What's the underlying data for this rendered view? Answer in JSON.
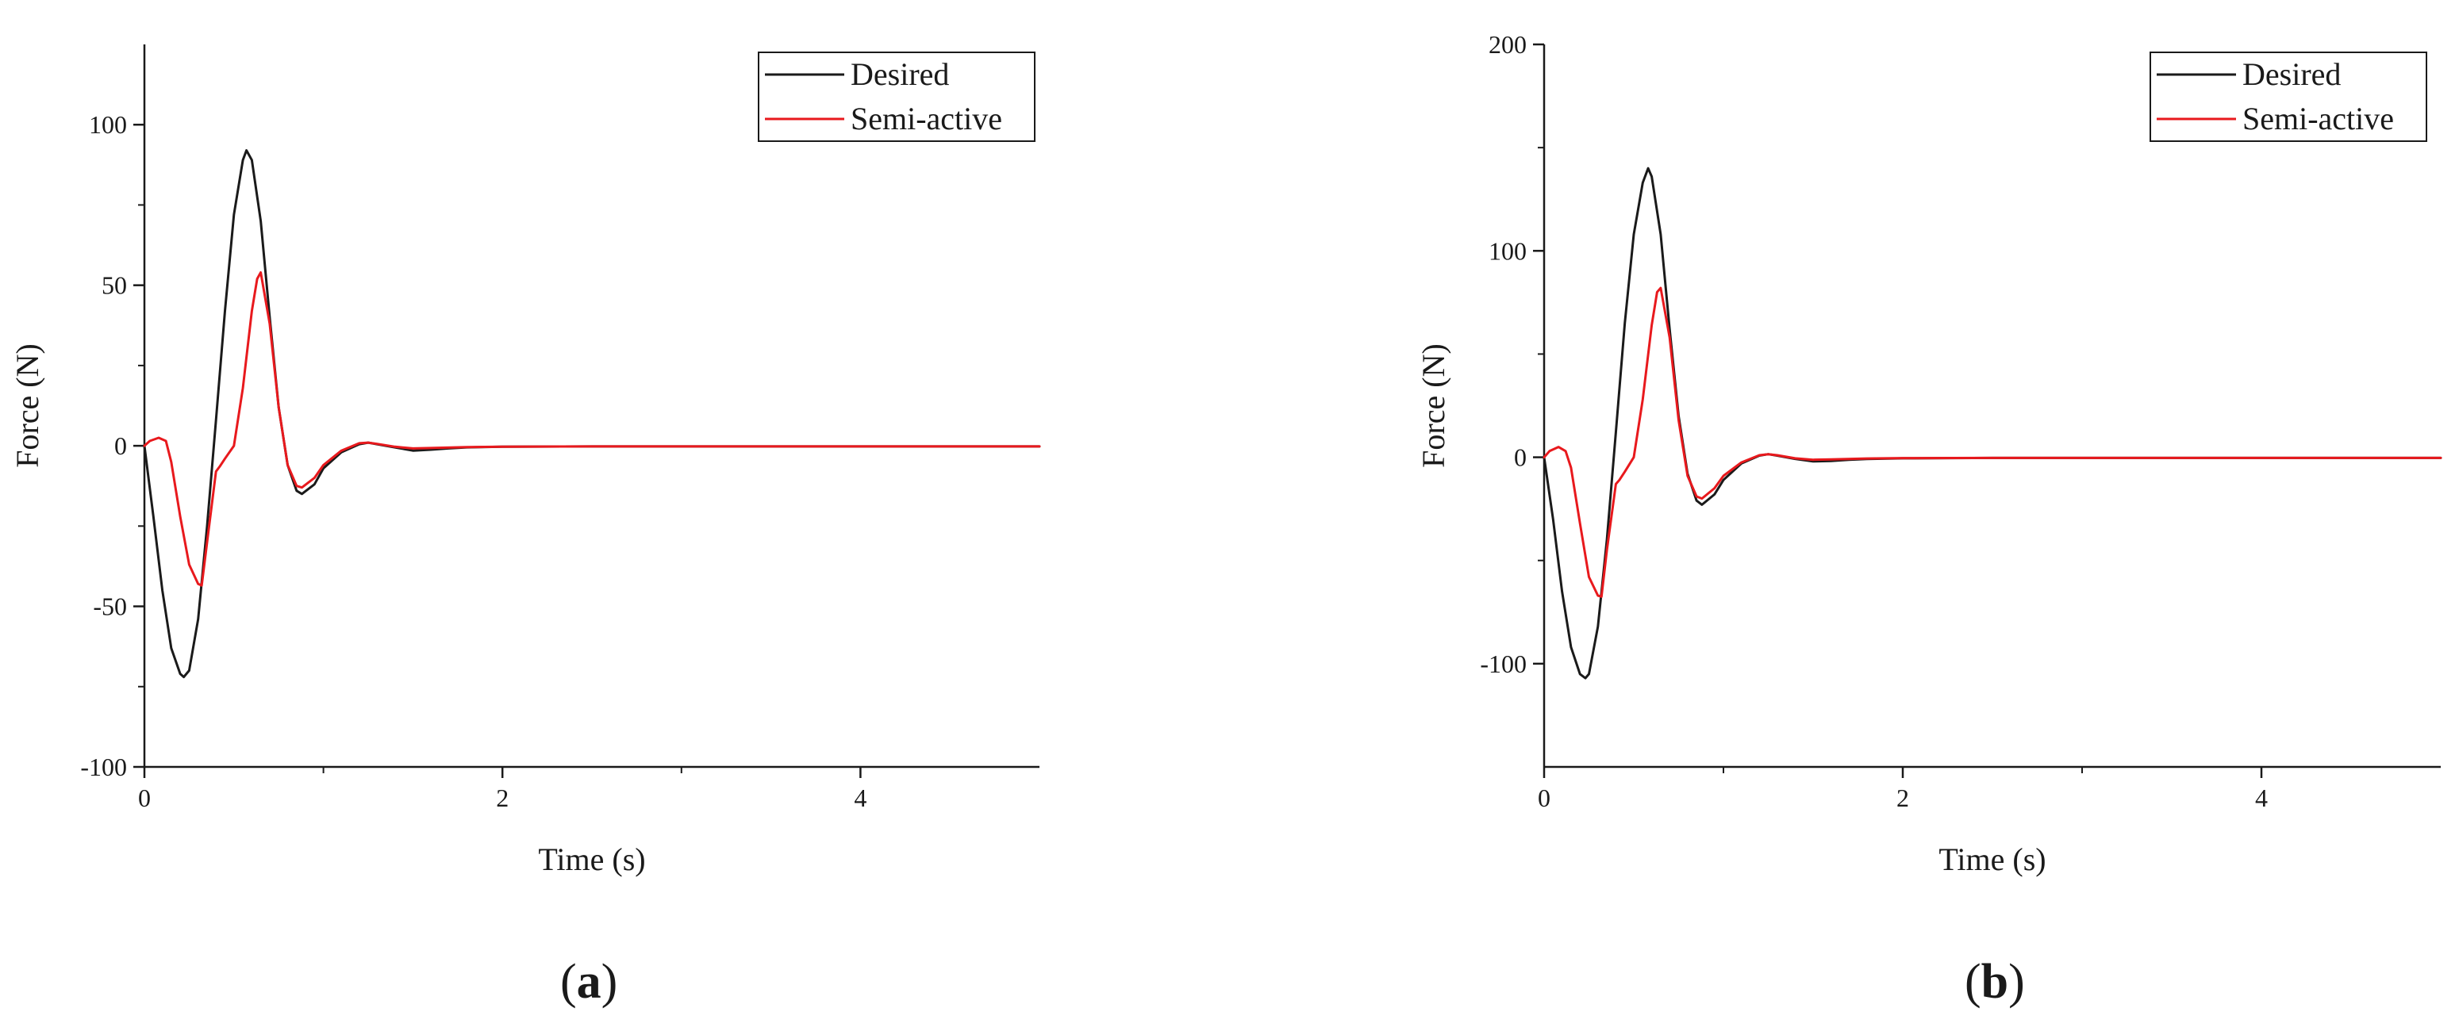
{
  "chart_data": [
    {
      "type": "line",
      "panel_label": "a",
      "xlabel": "Time (s)",
      "ylabel": "Force (N)",
      "xlim": [
        0,
        5
      ],
      "ylim": [
        -100,
        125
      ],
      "xticks": [
        0,
        2,
        4
      ],
      "yticks": [
        -100,
        -50,
        0,
        50,
        100
      ],
      "grid": false,
      "legend_position": "top-right",
      "series": [
        {
          "name": "Desired",
          "color": "#1a1a1a",
          "x": [
            0,
            0.05,
            0.1,
            0.15,
            0.2,
            0.22,
            0.25,
            0.3,
            0.35,
            0.4,
            0.45,
            0.5,
            0.55,
            0.57,
            0.6,
            0.65,
            0.7,
            0.75,
            0.8,
            0.85,
            0.88,
            0.95,
            1.0,
            1.1,
            1.2,
            1.25,
            1.3,
            1.4,
            1.5,
            1.6,
            1.7,
            1.8,
            2.0,
            2.5,
            3.0,
            3.5,
            4.0,
            4.5,
            5.0
          ],
          "y": [
            0,
            -22,
            -45,
            -63,
            -71,
            -72,
            -70,
            -54,
            -25,
            8,
            42,
            72,
            89,
            92,
            89,
            70,
            40,
            12,
            -6,
            -14,
            -15,
            -12,
            -7,
            -2,
            0.5,
            1,
            0.5,
            -0.5,
            -1.5,
            -1.2,
            -0.8,
            -0.5,
            -0.3,
            -0.2,
            -0.2,
            -0.2,
            -0.2,
            -0.2,
            -0.2
          ]
        },
        {
          "name": "Semi-active",
          "color": "#e8191d",
          "x": [
            0,
            0.03,
            0.08,
            0.12,
            0.15,
            0.2,
            0.25,
            0.3,
            0.32,
            0.35,
            0.4,
            0.42,
            0.45,
            0.5,
            0.55,
            0.6,
            0.63,
            0.65,
            0.7,
            0.75,
            0.8,
            0.85,
            0.88,
            0.95,
            1.0,
            1.1,
            1.2,
            1.25,
            1.3,
            1.4,
            1.5,
            1.6,
            1.8,
            2.0,
            2.5,
            3.0,
            3.5,
            4.0,
            4.5,
            5.0
          ],
          "y": [
            0,
            1.5,
            2.5,
            1.5,
            -5,
            -22,
            -37,
            -43,
            -43.5,
            -30,
            -8,
            -6.5,
            -4,
            0,
            18,
            42,
            52,
            54,
            38,
            12,
            -6,
            -12.5,
            -13,
            -10,
            -6,
            -1.5,
            0.8,
            1,
            0.6,
            -0.3,
            -0.8,
            -0.7,
            -0.4,
            -0.3,
            -0.2,
            -0.2,
            -0.2,
            -0.2,
            -0.2,
            -0.2
          ]
        }
      ]
    },
    {
      "type": "line",
      "panel_label": "b",
      "xlabel": "Time (s)",
      "ylabel": "Force (N)",
      "xlim": [
        0,
        5
      ],
      "ylim": [
        -150,
        200
      ],
      "xticks": [
        0,
        2,
        4
      ],
      "yticks": [
        -100,
        0,
        100,
        200
      ],
      "grid": false,
      "legend_position": "top-right",
      "series": [
        {
          "name": "Desired",
          "color": "#1a1a1a",
          "x": [
            0,
            0.05,
            0.1,
            0.15,
            0.2,
            0.23,
            0.25,
            0.3,
            0.35,
            0.4,
            0.45,
            0.5,
            0.55,
            0.58,
            0.6,
            0.65,
            0.7,
            0.75,
            0.8,
            0.85,
            0.88,
            0.95,
            1.0,
            1.1,
            1.2,
            1.25,
            1.3,
            1.4,
            1.5,
            1.6,
            1.7,
            1.8,
            2.0,
            2.5,
            3.0,
            3.5,
            4.0,
            4.5,
            5.0
          ],
          "y": [
            0,
            -30,
            -65,
            -92,
            -105,
            -107,
            -105,
            -82,
            -40,
            12,
            65,
            108,
            133,
            140,
            136,
            108,
            62,
            20,
            -8,
            -21,
            -23,
            -18,
            -11,
            -3,
            0.8,
            1.5,
            0.8,
            -0.8,
            -2,
            -1.8,
            -1.2,
            -0.8,
            -0.5,
            -0.3,
            -0.3,
            -0.3,
            -0.3,
            -0.3,
            -0.3
          ]
        },
        {
          "name": "Semi-active",
          "color": "#e8191d",
          "x": [
            0,
            0.03,
            0.08,
            0.12,
            0.15,
            0.2,
            0.25,
            0.3,
            0.32,
            0.35,
            0.4,
            0.42,
            0.45,
            0.5,
            0.55,
            0.6,
            0.63,
            0.65,
            0.7,
            0.75,
            0.8,
            0.85,
            0.88,
            0.95,
            1.0,
            1.1,
            1.2,
            1.25,
            1.3,
            1.4,
            1.5,
            1.6,
            1.8,
            2.0,
            2.5,
            3.0,
            3.5,
            4.0,
            4.5,
            5.0
          ],
          "y": [
            0,
            3,
            5,
            3,
            -5,
            -32,
            -58,
            -67,
            -67.5,
            -45,
            -13,
            -11,
            -7,
            0,
            28,
            64,
            80,
            82,
            58,
            18,
            -9,
            -19,
            -20,
            -15,
            -9,
            -2.5,
            1,
            1.5,
            1,
            -0.5,
            -1.2,
            -1,
            -0.6,
            -0.4,
            -0.3,
            -0.3,
            -0.3,
            -0.3,
            -0.3,
            -0.3
          ]
        }
      ]
    }
  ]
}
